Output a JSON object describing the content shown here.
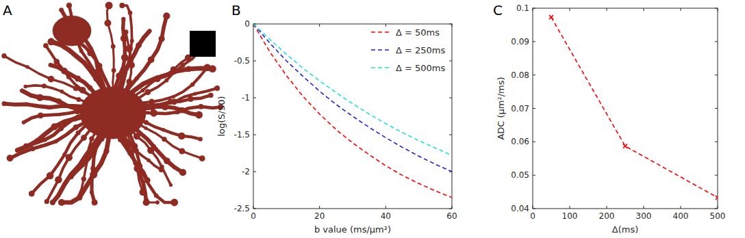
{
  "chart_data": [
    {
      "type": "image",
      "title": "A"
    },
    {
      "type": "line",
      "title": "B",
      "x_label": "b value (ms/μm²)",
      "y_label": "log(S/S0)",
      "x": [
        0,
        5,
        10,
        15,
        20,
        25,
        30,
        35,
        40,
        45,
        50,
        55,
        60
      ],
      "series": [
        {
          "name": "Δ = 50ms",
          "color": "#ff0000",
          "line_style": "dashed",
          "values": [
            0,
            -0.38,
            -0.7,
            -0.98,
            -1.22,
            -1.43,
            -1.61,
            -1.77,
            -1.92,
            -2.05,
            -2.16,
            -2.26,
            -2.35
          ]
        },
        {
          "name": "Δ = 250ms",
          "color": "#1f1fd6",
          "line_style": "dashed",
          "values": [
            0,
            -0.26,
            -0.5,
            -0.71,
            -0.91,
            -1.09,
            -1.25,
            -1.4,
            -1.54,
            -1.67,
            -1.79,
            -1.9,
            -2.0
          ]
        },
        {
          "name": "Δ = 500ms",
          "color": "#22dddd",
          "line_style": "dashed",
          "values": [
            0,
            -0.21,
            -0.41,
            -0.6,
            -0.77,
            -0.93,
            -1.08,
            -1.22,
            -1.35,
            -1.47,
            -1.58,
            -1.68,
            -1.78
          ]
        }
      ],
      "xlim": [
        0,
        60
      ],
      "xticks": [
        0,
        20,
        40,
        60
      ],
      "ylim": [
        -2.5,
        0
      ],
      "yticks": [
        -2.5,
        -2,
        -1.5,
        -1,
        -0.5,
        0
      ],
      "legend": "upper right"
    },
    {
      "type": "line",
      "title": "C",
      "x_label": "Δ(ms)",
      "y_label": "ADC (μm²/ms)",
      "x": [
        50,
        250,
        500
      ],
      "series": [
        {
          "color": "#ff0000",
          "line_style": "dashed",
          "marker": "x",
          "values": [
            0.0973,
            0.0587,
            0.0433
          ]
        }
      ],
      "xlim": [
        0,
        500
      ],
      "xticks": [
        0,
        100,
        200,
        300,
        400,
        500
      ],
      "ylim": [
        0.04,
        0.1
      ],
      "yticks": [
        0.04,
        0.05,
        0.06,
        0.07,
        0.08,
        0.09,
        0.1
      ]
    }
  ]
}
